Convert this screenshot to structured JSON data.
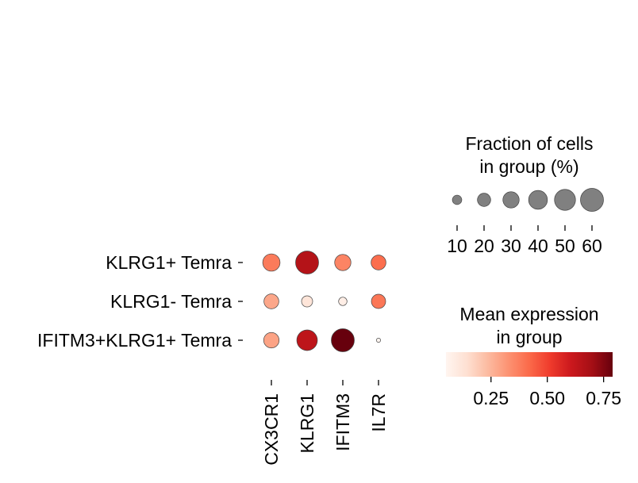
{
  "chart_data": {
    "type": "dotplot",
    "rows": [
      "KLRG1+ Temra",
      "KLRG1- Temra",
      "IFITM3+KLRG1+ Temra"
    ],
    "columns": [
      "CX3CR1",
      "KLRG1",
      "IFITM3",
      "IL7R"
    ],
    "fraction_of_cells_pct": [
      [
        34,
        60,
        30,
        25
      ],
      [
        25,
        14,
        8,
        23
      ],
      [
        27,
        48,
        60,
        2
      ]
    ],
    "mean_expression": [
      [
        0.38,
        0.66,
        0.36,
        0.41
      ],
      [
        0.28,
        0.12,
        0.08,
        0.39
      ],
      [
        0.29,
        0.64,
        0.8,
        0.05
      ]
    ],
    "size_legend": {
      "title": "Fraction of cells\nin group (%)",
      "values": [
        10,
        20,
        30,
        40,
        50,
        60
      ]
    },
    "color_legend": {
      "title": "Mean expression\nin group",
      "ticks": [
        0.25,
        0.5,
        0.75
      ],
      "tick_labels": [
        "0.25",
        "0.50",
        "0.75"
      ],
      "range": [
        0.05,
        0.79
      ],
      "colormap": "Reds",
      "stops": [
        "#fff5f0",
        "#fee0d2",
        "#fcbba1",
        "#fc9272",
        "#fb6a4a",
        "#ef3b2c",
        "#cb181d",
        "#a50f15",
        "#67000d"
      ]
    },
    "marker_edge_color": "#444444",
    "size_legend_color": "#808080"
  }
}
